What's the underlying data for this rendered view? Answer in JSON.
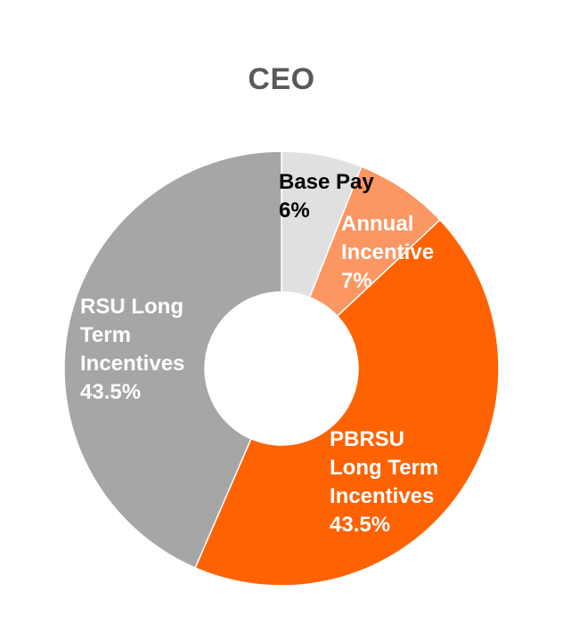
{
  "chart_data": {
    "type": "pie",
    "variant": "donut",
    "title": "CEO",
    "slices": [
      {
        "label_lines": [
          "Base Pay",
          "6%"
        ],
        "value": 6,
        "color": "#e0e0e0",
        "label_color": "#000000"
      },
      {
        "label_lines": [
          "Annual",
          "Incentive",
          "7%"
        ],
        "value": 7,
        "color": "#fc9662",
        "label_color": "#ffffff"
      },
      {
        "label_lines": [
          "PBRSU",
          "Long Term",
          "Incentives",
          "43.5%"
        ],
        "value": 43.5,
        "color": "#ff6200",
        "label_color": "#ffffff"
      },
      {
        "label_lines": [
          "RSU Long",
          "Term",
          "Incentives",
          "43.5%"
        ],
        "value": 43.5,
        "color": "#a6a6a6",
        "label_color": "#ffffff"
      }
    ],
    "legend": "none"
  }
}
